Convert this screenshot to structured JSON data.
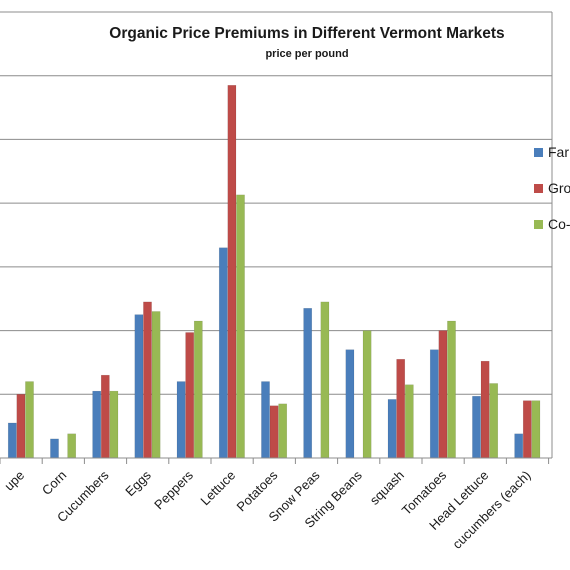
{
  "chart_data": {
    "type": "bar",
    "title": "Organic Price Premiums in Different Vermont Markets",
    "subtitle": "price per pound",
    "xlabel": "",
    "ylabel": "",
    "ylim": [
      0,
      7
    ],
    "grid": true,
    "legend_position": "right",
    "categories": [
      "Cantaloupe",
      "Corn",
      "Cucumbers",
      "Eggs",
      "Peppers",
      "Lettuce",
      "Potatoes",
      "Snow Peas",
      "String Beans",
      "squash",
      "Tomatoes",
      "Head Lettuce",
      "cucumbers (each)"
    ],
    "tick_labels": [
      "upe",
      "Corn",
      "Cucumbers",
      "Eggs",
      "Peppers",
      "Lettuce",
      "Potatoes",
      "Snow Peas",
      "String Beans",
      "squash",
      "Tomatoes",
      "Head Lettuce",
      "cucumbers (each)"
    ],
    "series": [
      {
        "name": "Far",
        "color": "#4a7ebb",
        "values": [
          0.55,
          0.3,
          1.05,
          2.25,
          1.2,
          3.3,
          1.2,
          2.35,
          1.7,
          0.92,
          1.7,
          0.97,
          0.38
        ]
      },
      {
        "name": "Gro",
        "color": "#be4b48",
        "values": [
          1.0,
          null,
          1.3,
          2.45,
          1.97,
          5.85,
          0.82,
          null,
          null,
          1.55,
          2.0,
          1.52,
          0.9
        ]
      },
      {
        "name": "Co-",
        "color": "#98b954",
        "values": [
          1.2,
          0.38,
          1.05,
          2.3,
          2.15,
          4.13,
          0.85,
          2.45,
          2.0,
          1.15,
          2.15,
          1.17,
          0.9
        ]
      }
    ]
  }
}
